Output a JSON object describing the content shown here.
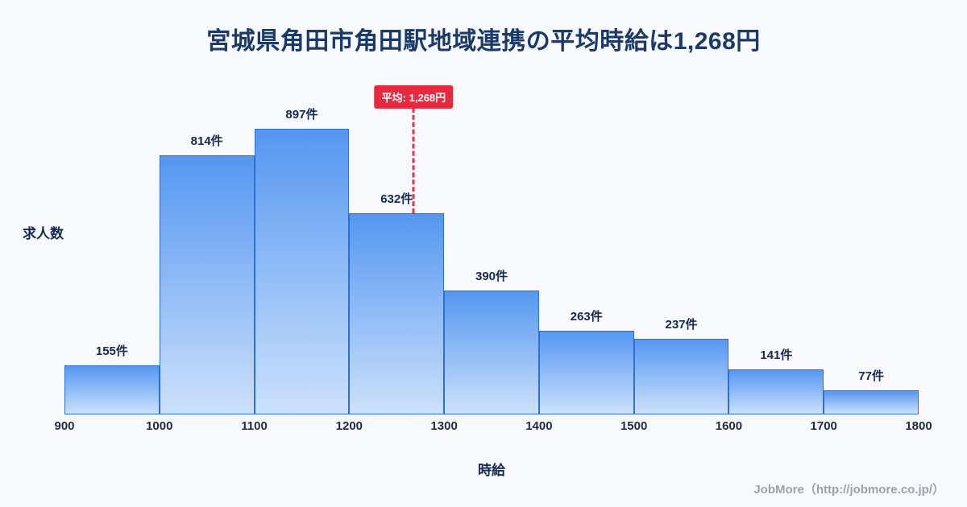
{
  "page": {
    "title": "宮城県角田市角田駅地域連携の平均時給は1,268円",
    "footer": "JobMore（http://jobmore.co.jp/）"
  },
  "chart_data": {
    "type": "bar",
    "subtype": "histogram",
    "title": "宮城県角田市角田駅地域連携の平均時給は1,268円",
    "xlabel": "時給",
    "ylabel": "求人数",
    "bins": [
      900,
      1000,
      1100,
      1200,
      1300,
      1400,
      1500,
      1600,
      1700,
      1800
    ],
    "x_ticks": [
      "900",
      "1000",
      "1100",
      "1200",
      "1300",
      "1400",
      "1500",
      "1600",
      "1700",
      "1800"
    ],
    "values": [
      155,
      814,
      897,
      632,
      390,
      263,
      237,
      141,
      77
    ],
    "value_suffix": "件",
    "value_labels": [
      "155件",
      "814件",
      "897件",
      "632件",
      "390件",
      "263件",
      "237件",
      "141件",
      "77件"
    ],
    "average": {
      "value": 1268,
      "label": "平均: 1,268円"
    },
    "ylim": [
      0,
      897
    ],
    "grid": false,
    "legend": "none",
    "colors": {
      "background": "#f7f9fd",
      "bar_gradient_top": "#5597f0",
      "bar_gradient_bottom": "#cde1fb",
      "bar_border": "#2e6fd6",
      "average_line": "#e3344a",
      "average_badge_bg": "#e8283f",
      "title_text": "#1b3a6b",
      "label_text": "#16294e",
      "footer_text": "#9aa2ac"
    }
  }
}
